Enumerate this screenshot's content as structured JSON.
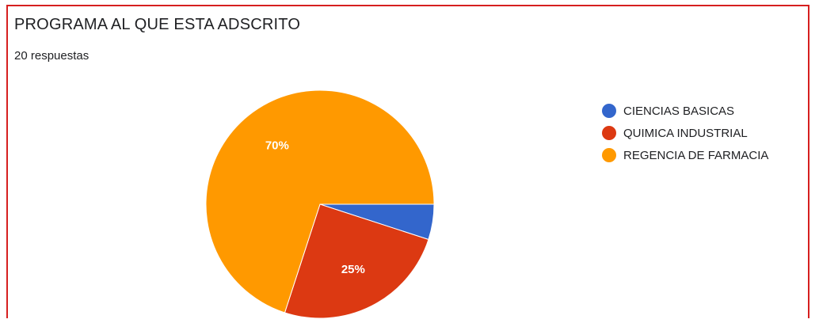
{
  "header": {
    "clipped_text": "",
    "title": "PROGRAMA AL QUE ESTA ADSCRITO",
    "responses": "20 respuestas"
  },
  "chart_data": {
    "type": "pie",
    "title": "PROGRAMA AL QUE ESTA ADSCRITO",
    "categories": [
      "CIENCIAS BASICAS",
      "QUIMICA INDUSTRIAL",
      "REGENCIA DE FARMACIA"
    ],
    "values": [
      5,
      25,
      70
    ],
    "data_labels": [
      "",
      "25%",
      "70%"
    ],
    "colors": [
      "#3366cc",
      "#dc3912",
      "#ff9900"
    ],
    "legend_position": "right"
  }
}
